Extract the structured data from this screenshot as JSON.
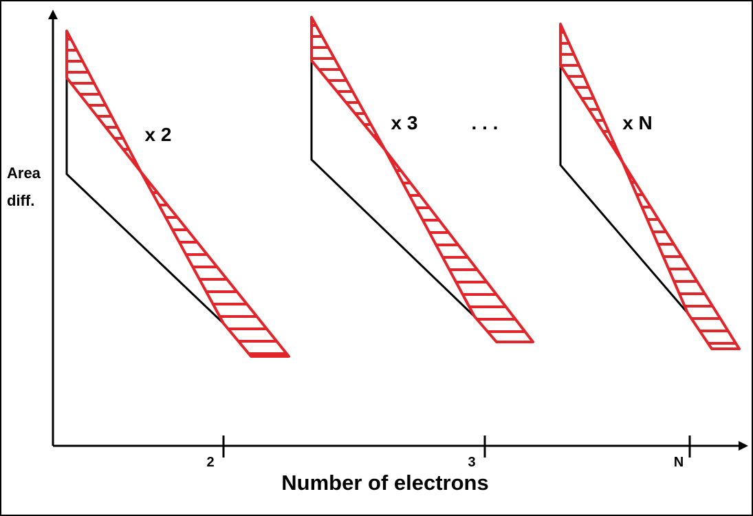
{
  "axes": {
    "y_label": "Area diff.",
    "x_label": "Number of electrons",
    "x_ticks": [
      "2",
      "3",
      "N"
    ]
  },
  "annotations": {
    "factor_2": "x 2",
    "factor_3": "x 3",
    "ellipsis": ". . .",
    "factor_n": "x N"
  }
}
